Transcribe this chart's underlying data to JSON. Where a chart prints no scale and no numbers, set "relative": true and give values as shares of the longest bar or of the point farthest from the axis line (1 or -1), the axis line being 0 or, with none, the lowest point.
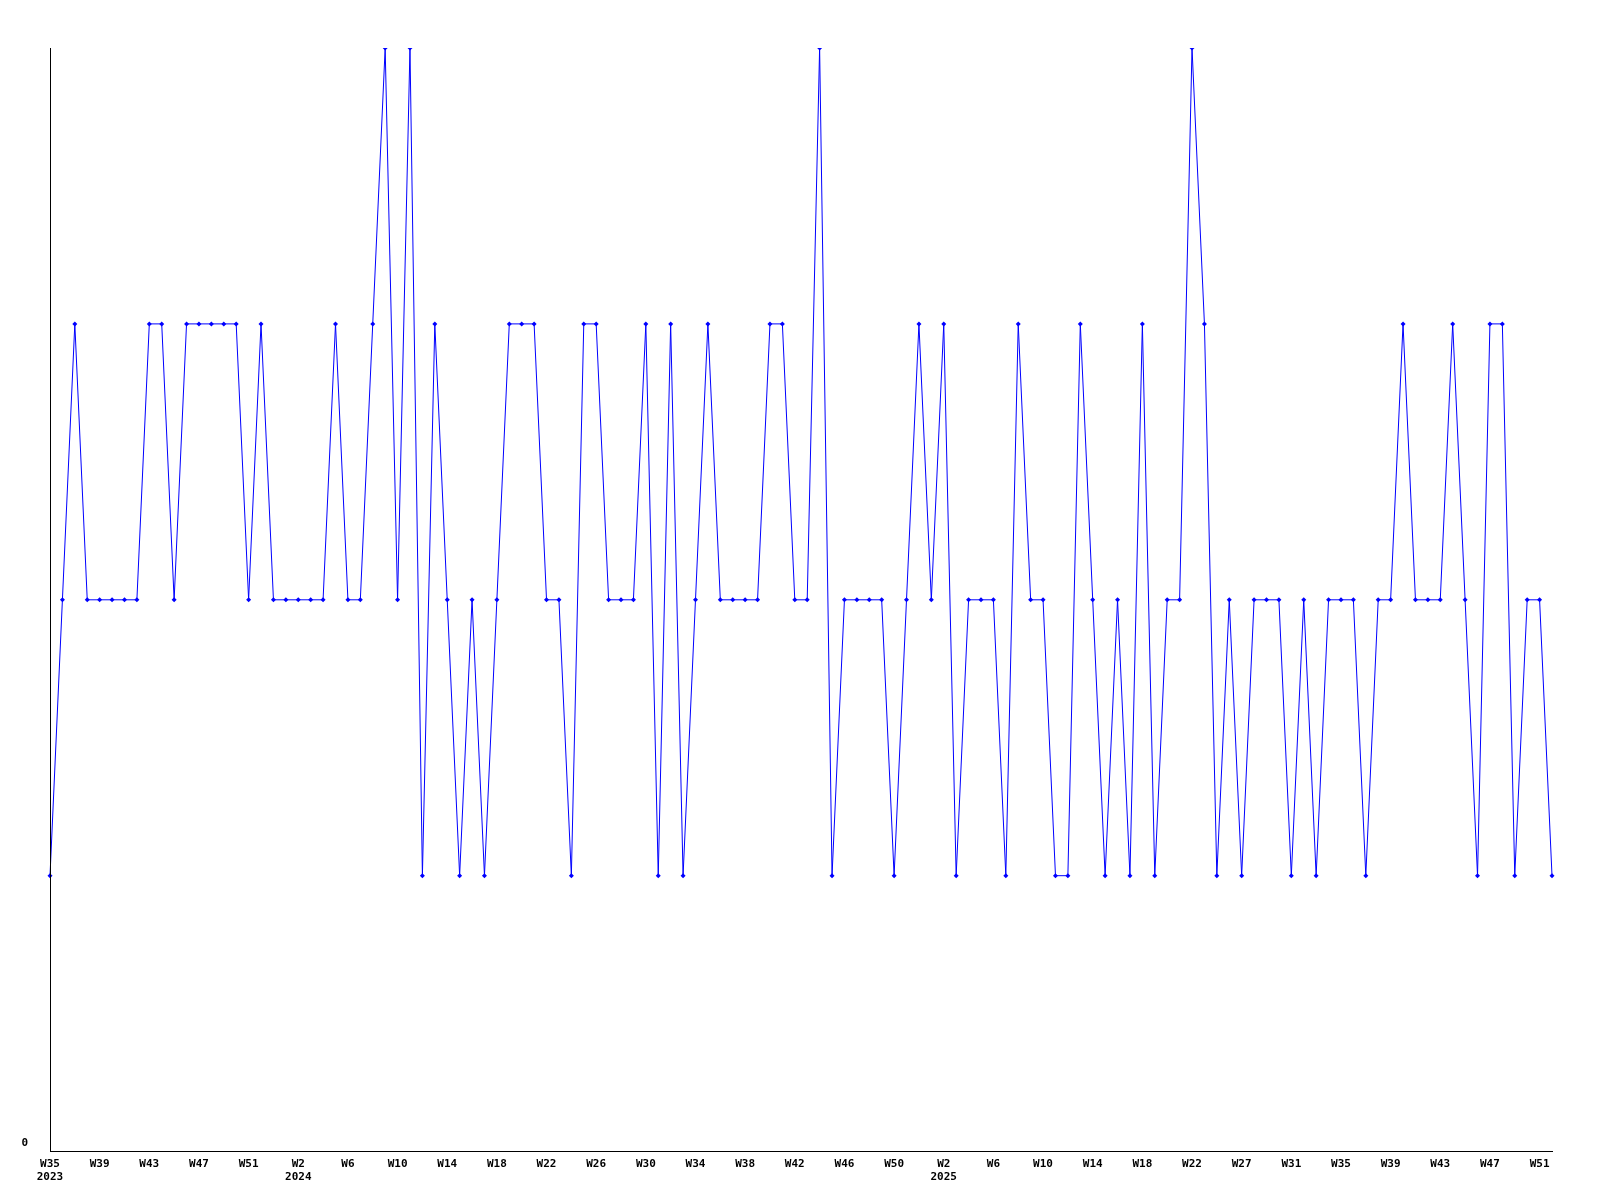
{
  "chart_data": {
    "type": "line",
    "relative": true,
    "grid": false,
    "legend": false,
    "marker": "diamond",
    "line_style": "solid",
    "annotations": [
      "0"
    ],
    "categories": [
      "W35\n2023",
      null,
      null,
      null,
      "W39",
      null,
      null,
      null,
      "W43",
      null,
      null,
      null,
      "W47",
      null,
      null,
      null,
      "W51",
      null,
      null,
      null,
      "W2\n2024",
      null,
      null,
      null,
      "W6",
      null,
      null,
      null,
      "W10",
      null,
      null,
      null,
      "W14",
      null,
      null,
      null,
      "W18",
      null,
      null,
      null,
      "W22",
      null,
      null,
      null,
      "W26",
      null,
      null,
      null,
      "W30",
      null,
      null,
      null,
      "W34",
      null,
      null,
      null,
      "W38",
      null,
      null,
      null,
      "W42",
      null,
      null,
      null,
      "W46",
      null,
      null,
      null,
      "W50",
      null,
      null,
      null,
      "W2\n2025",
      null,
      null,
      null,
      "W6",
      null,
      null,
      null,
      "W10",
      null,
      null,
      null,
      "W14",
      null,
      null,
      null,
      "W18",
      null,
      null,
      null,
      "W22",
      null,
      null,
      null,
      "W27",
      null,
      null,
      null,
      "W31",
      null,
      null,
      null,
      "W35",
      null,
      null,
      null,
      "W39",
      null,
      null,
      null,
      "W43",
      null,
      null,
      null,
      "W47",
      null,
      null,
      null,
      "W51",
      null
    ],
    "series": [
      {
        "color": "#0000ff",
        "values": [
          0.25,
          0.5,
          0.75,
          0.5,
          0.5,
          0.5,
          0.5,
          0.5,
          0.75,
          0.75,
          0.5,
          0.75,
          0.75,
          0.75,
          0.75,
          0.75,
          0.5,
          0.75,
          0.5,
          0.5,
          0.5,
          0.5,
          0.5,
          0.75,
          0.5,
          0.5,
          0.75,
          1,
          0.5,
          1,
          0.25,
          0.75,
          0.5,
          0.25,
          0.5,
          0.25,
          0.5,
          0.75,
          0.75,
          0.75,
          0.5,
          0.5,
          0.25,
          0.75,
          0.75,
          0.5,
          0.5,
          0.5,
          0.75,
          0.25,
          0.75,
          0.25,
          0.5,
          0.75,
          0.5,
          0.5,
          0.5,
          0.5,
          0.75,
          0.75,
          0.5,
          0.5,
          1,
          0.25,
          0.5,
          0.5,
          0.5,
          0.5,
          0.25,
          0.5,
          0.75,
          0.5,
          0.75,
          0.25,
          0.5,
          0.5,
          0.5,
          0.25,
          0.75,
          0.5,
          0.5,
          0.25,
          0.25,
          0.75,
          0.5,
          0.25,
          0.5,
          0.25,
          0.75,
          0.25,
          0.5,
          0.5,
          1,
          0.75,
          0.25,
          0.5,
          0.25,
          0.5,
          0.5,
          0.5,
          0.25,
          0.5,
          0.25,
          0.5,
          0.5,
          0.5,
          0.25,
          0.5,
          0.5,
          0.75,
          0.5,
          0.5,
          0.5,
          0.75,
          0.5,
          0.25,
          0.75,
          0.75,
          0.25,
          0.5,
          0.5,
          0.25
        ]
      }
    ]
  }
}
